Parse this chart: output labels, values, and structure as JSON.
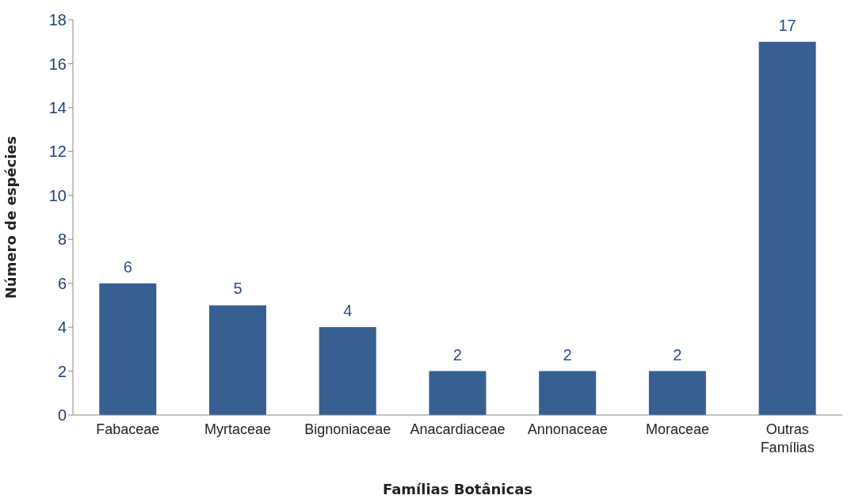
{
  "chart_data": {
    "type": "bar",
    "xlabel": "Famílias Botânicas",
    "ylabel": "Número de espécies",
    "categories": [
      "Fabaceae",
      "Myrtaceae",
      "Bignoniaceae",
      "Anacardiaceae",
      "Annonaceae",
      "Moraceae",
      "Outras Famílias"
    ],
    "values": [
      6,
      5,
      4,
      2,
      2,
      2,
      17
    ],
    "color": "#375f91",
    "ylim": [
      0,
      18
    ],
    "yticks": [
      0,
      2,
      4,
      6,
      8,
      10,
      12,
      14,
      16,
      18
    ],
    "grid": false,
    "data_labels": true
  }
}
